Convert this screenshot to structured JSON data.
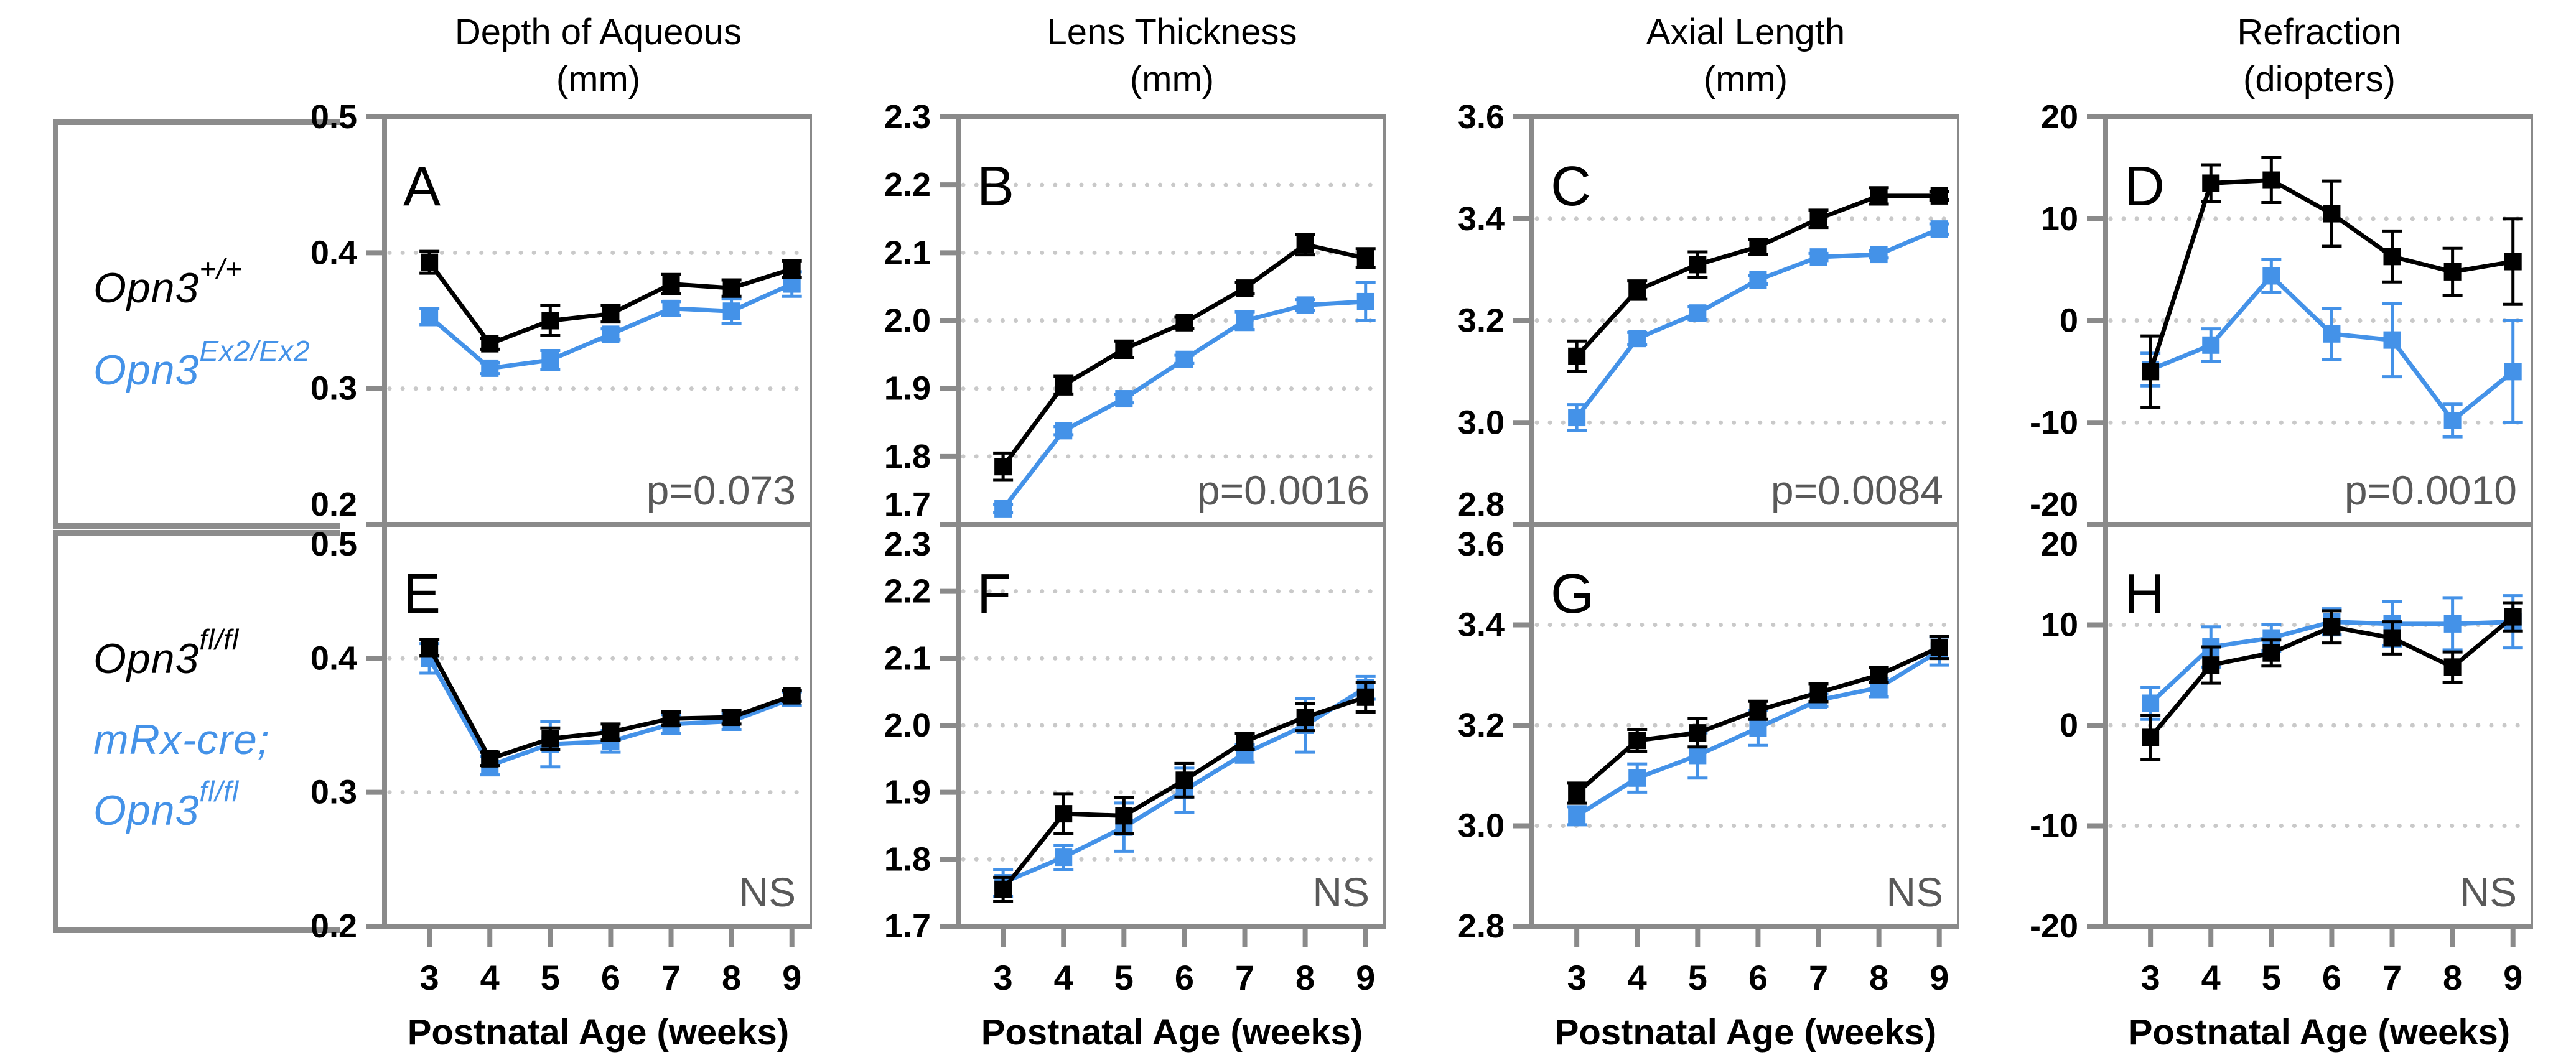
{
  "figure": {
    "x_axis_label": "Postnatal Age (weeks)",
    "x_ticks": [
      "3",
      "4",
      "5",
      "6",
      "7",
      "8",
      "9"
    ],
    "colors": {
      "black_series": "#000000",
      "blue_series": "#4492e8",
      "axis": "#8a8a8a",
      "grid": "#c9c9c9",
      "stat_text": "#595959",
      "bracket": "#8c8c8c"
    },
    "columns": [
      {
        "title": "Depth of Aqueous",
        "unit": "(mm)"
      },
      {
        "title": "Lens Thickness",
        "unit": "(mm)"
      },
      {
        "title": "Axial Length",
        "unit": "(mm)"
      },
      {
        "title": "Refraction",
        "unit": "(diopters)"
      }
    ],
    "left_labels": {
      "top": [
        {
          "base": "Opn3",
          "sup": "+/+"
        },
        {
          "base": "Opn3",
          "sup": "Ex2/Ex2"
        }
      ],
      "bottom": [
        {
          "base": "Opn3",
          "sup": "fl/fl"
        },
        {
          "base": "mRx-cre;",
          "sup": ""
        },
        {
          "base": "Opn3",
          "sup": "fl/fl"
        }
      ]
    }
  },
  "chart_data": [
    {
      "panel": "A",
      "type": "line",
      "row": 0,
      "col": 0,
      "title": "Depth of Aqueous (mm)",
      "stat": "p=0.073",
      "x": [
        3,
        4,
        5,
        6,
        7,
        8,
        9
      ],
      "ylim": [
        0.2,
        0.5
      ],
      "ytick_vals": [
        0.5,
        0.4,
        0.3,
        0.2
      ],
      "ytick_labels": [
        "0.5",
        "0.4",
        "0.3",
        "0.2"
      ],
      "gridlines": [
        0.4,
        0.3
      ],
      "series": [
        {
          "name": "Opn3+/+",
          "color": "#000000",
          "values": [
            0.393,
            0.333,
            0.35,
            0.355,
            0.377,
            0.374,
            0.388
          ],
          "err": [
            0.008,
            0.004,
            0.011,
            0.006,
            0.007,
            0.006,
            0.006
          ]
        },
        {
          "name": "Opn3Ex2/Ex2",
          "color": "#4492e8",
          "values": [
            0.353,
            0.315,
            0.321,
            0.34,
            0.359,
            0.357,
            0.377
          ],
          "err": [
            0.006,
            0.004,
            0.007,
            0.004,
            0.005,
            0.009,
            0.009
          ]
        }
      ]
    },
    {
      "panel": "B",
      "type": "line",
      "row": 0,
      "col": 1,
      "title": "Lens Thickness (mm)",
      "stat": "p=0.0016",
      "x": [
        3,
        4,
        5,
        6,
        7,
        8,
        9
      ],
      "ylim": [
        1.7,
        2.3
      ],
      "ytick_vals": [
        2.3,
        2.2,
        2.1,
        2.0,
        1.9,
        1.8,
        1.7
      ],
      "ytick_labels": [
        "2.3",
        "2.2",
        "2.1",
        "2.0",
        "1.9",
        "1.8",
        "1.7"
      ],
      "gridlines": [
        2.2,
        2.1,
        2.0,
        1.9,
        1.8
      ],
      "series": [
        {
          "name": "Opn3+/+",
          "color": "#000000",
          "values": [
            1.785,
            1.905,
            1.958,
            1.997,
            2.048,
            2.112,
            2.092
          ],
          "err": [
            0.02,
            0.013,
            0.012,
            0.008,
            0.008,
            0.015,
            0.014
          ]
        },
        {
          "name": "Opn3Ex2/Ex2",
          "color": "#4492e8",
          "values": [
            1.723,
            1.838,
            1.885,
            1.943,
            2.0,
            2.023,
            2.028
          ],
          "err": [
            0.006,
            0.006,
            0.006,
            0.006,
            0.013,
            0.008,
            0.028
          ]
        }
      ]
    },
    {
      "panel": "C",
      "type": "line",
      "row": 0,
      "col": 2,
      "title": "Axial Length (mm)",
      "stat": "p=0.0084",
      "x": [
        3,
        4,
        5,
        6,
        7,
        8,
        9
      ],
      "ylim": [
        2.8,
        3.6
      ],
      "ytick_vals": [
        3.6,
        3.4,
        3.2,
        3.0,
        2.8
      ],
      "ytick_labels": [
        "3.6",
        "3.4",
        "3.2",
        "3.0",
        "2.8"
      ],
      "gridlines": [
        3.4,
        3.2,
        3.0
      ],
      "series": [
        {
          "name": "Opn3+/+",
          "color": "#000000",
          "values": [
            3.13,
            3.26,
            3.31,
            3.345,
            3.4,
            3.445,
            3.445
          ],
          "err": [
            0.03,
            0.018,
            0.025,
            0.015,
            0.017,
            0.016,
            0.008
          ]
        },
        {
          "name": "Opn3Ex2/Ex2",
          "color": "#4492e8",
          "values": [
            3.01,
            3.165,
            3.215,
            3.28,
            3.325,
            3.33,
            3.38
          ],
          "err": [
            0.025,
            0.012,
            0.013,
            0.008,
            0.007,
            0.007,
            0.01
          ]
        }
      ]
    },
    {
      "panel": "D",
      "type": "line",
      "row": 0,
      "col": 3,
      "title": "Refraction (diopters)",
      "stat": "p=0.0010",
      "x": [
        3,
        4,
        5,
        6,
        7,
        8,
        9
      ],
      "ylim": [
        -20,
        20
      ],
      "ytick_vals": [
        20,
        10,
        0,
        -10,
        -20
      ],
      "ytick_labels": [
        "20",
        "10",
        "0",
        "-10",
        "-20"
      ],
      "gridlines": [
        10,
        0,
        -10
      ],
      "series": [
        {
          "name": "Opn3+/+",
          "color": "#000000",
          "values": [
            -5.0,
            13.5,
            13.8,
            10.5,
            6.3,
            4.8,
            5.8
          ],
          "err": [
            3.5,
            1.8,
            2.2,
            3.2,
            2.5,
            2.3,
            4.2
          ]
        },
        {
          "name": "Opn3Ex2/Ex2",
          "color": "#4492e8",
          "values": [
            -4.8,
            -2.4,
            4.4,
            -1.3,
            -1.9,
            -9.8,
            -5.0
          ],
          "err": [
            1.6,
            1.6,
            1.6,
            2.5,
            3.6,
            1.6,
            5.0
          ]
        }
      ]
    },
    {
      "panel": "E",
      "type": "line",
      "row": 1,
      "col": 0,
      "title": "Depth of Aqueous (mm)",
      "stat": "NS",
      "x": [
        3,
        4,
        5,
        6,
        7,
        8,
        9
      ],
      "ylim": [
        0.2,
        0.5
      ],
      "ytick_vals": [
        0.5,
        0.4,
        0.3,
        0.2
      ],
      "ytick_labels": [
        "0.5",
        "0.4",
        "0.3",
        "0.2"
      ],
      "gridlines": [
        0.4,
        0.3
      ],
      "series": [
        {
          "name": "Opn3fl/fl",
          "color": "#000000",
          "values": [
            0.408,
            0.325,
            0.34,
            0.345,
            0.355,
            0.356,
            0.372
          ],
          "err": [
            0.006,
            0.005,
            0.008,
            0.006,
            0.005,
            0.005,
            0.004
          ]
        },
        {
          "name": "mRx-cre; Opn3fl/fl",
          "color": "#4492e8",
          "values": [
            0.4,
            0.32,
            0.336,
            0.338,
            0.351,
            0.353,
            0.37
          ],
          "err": [
            0.011,
            0.007,
            0.017,
            0.008,
            0.007,
            0.006,
            0.005
          ]
        }
      ]
    },
    {
      "panel": "F",
      "type": "line",
      "row": 1,
      "col": 1,
      "title": "Lens Thickness (mm)",
      "stat": "NS",
      "x": [
        3,
        4,
        5,
        6,
        7,
        8,
        9
      ],
      "ylim": [
        1.7,
        2.3
      ],
      "ytick_vals": [
        2.3,
        2.2,
        2.1,
        2.0,
        1.9,
        1.8,
        1.7
      ],
      "ytick_labels": [
        "2.3",
        "2.2",
        "2.1",
        "2.0",
        "1.9",
        "1.8",
        "1.7"
      ],
      "gridlines": [
        2.2,
        2.1,
        2.0,
        1.9,
        1.8
      ],
      "series": [
        {
          "name": "Opn3fl/fl",
          "color": "#000000",
          "values": [
            1.755,
            1.868,
            1.865,
            1.918,
            1.976,
            2.012,
            2.042
          ],
          "err": [
            0.018,
            0.03,
            0.027,
            0.025,
            0.012,
            0.02,
            0.022
          ]
        },
        {
          "name": "mRx-cre; Opn3fl/fl",
          "color": "#4492e8",
          "values": [
            1.765,
            1.803,
            1.848,
            1.903,
            1.958,
            2.0,
            2.056
          ],
          "err": [
            0.02,
            0.018,
            0.036,
            0.033,
            0.013,
            0.04,
            0.017
          ]
        }
      ]
    },
    {
      "panel": "G",
      "type": "line",
      "row": 1,
      "col": 2,
      "title": "Axial Length (mm)",
      "stat": "NS",
      "x": [
        3,
        4,
        5,
        6,
        7,
        8,
        9
      ],
      "ylim": [
        2.8,
        3.6
      ],
      "ytick_vals": [
        3.6,
        3.4,
        3.2,
        3.0,
        2.8
      ],
      "ytick_labels": [
        "3.6",
        "3.4",
        "3.2",
        "3.0",
        "2.8"
      ],
      "gridlines": [
        3.4,
        3.2,
        3.0
      ],
      "series": [
        {
          "name": "Opn3fl/fl",
          "color": "#000000",
          "values": [
            3.065,
            3.17,
            3.185,
            3.23,
            3.265,
            3.3,
            3.355
          ],
          "err": [
            0.02,
            0.022,
            0.028,
            0.018,
            0.018,
            0.015,
            0.022
          ]
        },
        {
          "name": "mRx-cre; Opn3fl/fl",
          "color": "#4492e8",
          "values": [
            3.02,
            3.095,
            3.14,
            3.195,
            3.25,
            3.275,
            3.348
          ],
          "err": [
            0.018,
            0.028,
            0.045,
            0.035,
            0.012,
            0.018,
            0.028
          ]
        }
      ]
    },
    {
      "panel": "H",
      "type": "line",
      "row": 1,
      "col": 3,
      "title": "Refraction (diopters)",
      "stat": "NS",
      "x": [
        3,
        4,
        5,
        6,
        7,
        8,
        9
      ],
      "ylim": [
        -20,
        20
      ],
      "ytick_vals": [
        20,
        10,
        0,
        -10,
        -20
      ],
      "ytick_labels": [
        "20",
        "10",
        "0",
        "-10",
        "-20"
      ],
      "gridlines": [
        10,
        0,
        -10
      ],
      "series": [
        {
          "name": "Opn3fl/fl",
          "color": "#000000",
          "values": [
            -1.2,
            6.0,
            7.2,
            9.8,
            8.7,
            5.8,
            10.8
          ],
          "err": [
            2.2,
            1.8,
            1.3,
            1.6,
            1.6,
            1.5,
            1.4
          ]
        },
        {
          "name": "mRx-cre; Opn3fl/fl",
          "color": "#4492e8",
          "values": [
            2.2,
            7.8,
            8.7,
            10.3,
            10.1,
            10.1,
            10.3
          ],
          "err": [
            1.6,
            2.0,
            1.3,
            1.3,
            2.2,
            2.6,
            2.6
          ]
        }
      ]
    }
  ]
}
